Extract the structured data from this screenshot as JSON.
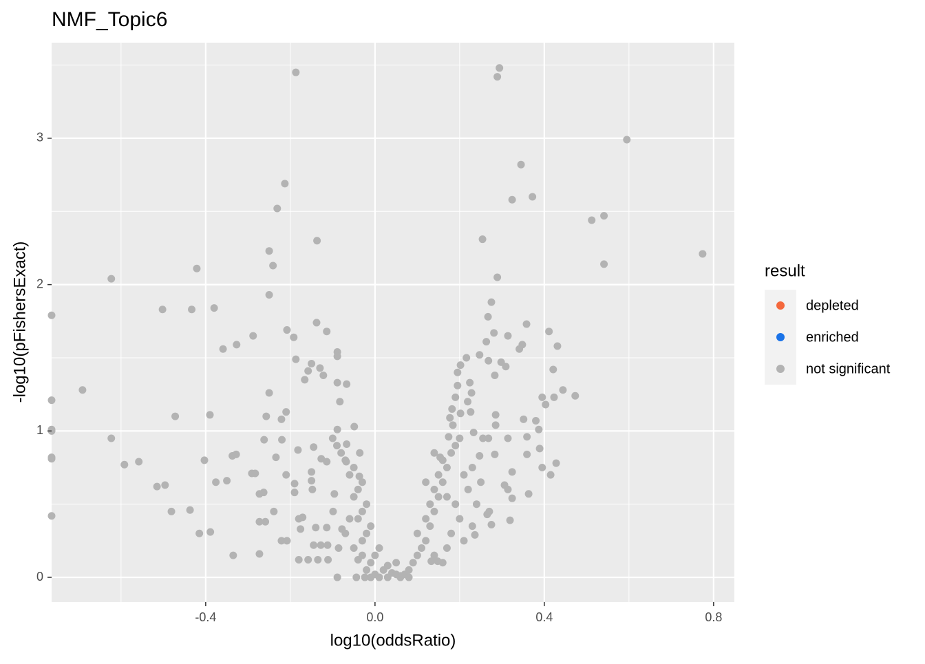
{
  "chart_data": {
    "type": "scatter",
    "title": "NMF_Topic6",
    "x_label": "log10(oddsRatio)",
    "y_label": "-log10(pFishersExact)",
    "legend_title": "result",
    "legend_position": "right",
    "xlim": [
      -0.764,
      0.849
    ],
    "ylim": [
      -0.169,
      3.653
    ],
    "xticks": [
      -0.4,
      {
        "value": 0,
        "label": "0.0"
      },
      0.4,
      0.8
    ],
    "yticks": [
      0,
      1,
      2,
      3
    ],
    "minor_xticks": [
      -0.6,
      -0.2,
      0.2,
      0.6
    ],
    "minor_yticks": [
      0.5,
      1.5,
      2.5,
      3.5
    ],
    "grid": true,
    "series": [
      {
        "name": "depleted",
        "color": "#f4683c",
        "x": [],
        "values": []
      },
      {
        "name": "enriched",
        "color": "#1a73e8",
        "x": [],
        "values": []
      },
      {
        "name": "not significant",
        "color": "#b3b3b3",
        "x": [
          -0.187,
          0.294,
          0.289,
          0.595,
          0.345,
          -0.213,
          0.372,
          0.324,
          -0.231,
          0.541,
          0.512,
          -0.137,
          0.254,
          -0.25,
          0.774,
          0.541,
          -0.241,
          -0.421,
          -0.623,
          0.289,
          -0.25,
          0.275,
          -0.502,
          -0.433,
          -0.38,
          -0.764,
          0.267,
          -0.138,
          0.358,
          -0.208,
          -0.114,
          0.411,
          0.281,
          -0.192,
          -0.288,
          0.314,
          0.263,
          -0.327,
          0.348,
          0.431,
          -0.359,
          0.341,
          -0.089,
          -0.089,
          0.247,
          0.216,
          -0.187,
          0.268,
          -0.15,
          0.298,
          0.202,
          0.309,
          -0.13,
          -0.158,
          0.421,
          -0.122,
          0.195,
          -0.166,
          0.283,
          -0.089,
          -0.067,
          0.224,
          0.195,
          -0.691,
          0.444,
          -0.25,
          0.228,
          0.473,
          0.395,
          0.423,
          0.19,
          -0.764,
          0.219,
          -0.083,
          0.403,
          0.182,
          0.226,
          -0.21,
          0.202,
          0.285,
          -0.472,
          -0.39,
          -0.257,
          0.177,
          -0.221,
          0.351,
          0.38,
          0.184,
          -0.764,
          -0.764,
          -0.089,
          -0.049,
          -0.623,
          -0.262,
          -0.22,
          0.314,
          0.359,
          0.387,
          0.233,
          0.174,
          0.255,
          0.285,
          0.268,
          -0.145,
          -0.067,
          0.389,
          -0.328,
          -0.337,
          -0.182,
          0.359,
          -0.234,
          -0.764,
          -0.764,
          -0.403,
          -0.127,
          -0.036,
          0.283,
          0.247,
          0.154,
          -0.592,
          -0.558,
          0.428,
          0.395,
          -0.114,
          -0.068,
          -0.15,
          0.324,
          -0.291,
          -0.283,
          -0.21,
          0.415,
          -0.376,
          -0.35,
          -0.15,
          -0.037,
          -0.19,
          -0.515,
          -0.496,
          0.306,
          0.314,
          -0.148,
          -0.273,
          -0.263,
          -0.19,
          -0.096,
          0.363,
          0.324,
          -0.481,
          -0.437,
          -0.239,
          -0.099,
          0.265,
          -0.764,
          0.319,
          -0.273,
          -0.259,
          -0.18,
          -0.171,
          0.275,
          -0.176,
          -0.14,
          -0.114,
          -0.415,
          -0.389,
          -0.078,
          0.236,
          -0.221,
          -0.208,
          -0.145,
          -0.128,
          -0.112,
          -0.086,
          -0.335,
          -0.273,
          -0.18,
          -0.158,
          -0.135,
          -0.111,
          0.133,
          0.148,
          -0.089,
          -0.044,
          -0.024,
          -0.02,
          -0.01,
          0,
          0.01,
          -0.03,
          -0.02,
          -0.01,
          -0.04,
          -0.03,
          -0.02,
          -0.05,
          -0.04,
          -0.03,
          -0.06,
          -0.05,
          -0.07,
          -0.08,
          -0.09,
          -0.1,
          0,
          0.02,
          0.03,
          0.04,
          0.05,
          0.06,
          0.07,
          0.08,
          0.09,
          0.1,
          0.11,
          0.12,
          0.1,
          0.13,
          0.12,
          0.14,
          0.13,
          0.15,
          0.14,
          0.16,
          0.15,
          0.17,
          0.16,
          0.18,
          0.19,
          0.2,
          0.21,
          0.22,
          0.19,
          0.2,
          0.18,
          0.17,
          0.16,
          0.14,
          0.23,
          0.25,
          0.24,
          0.27,
          0.23,
          0.21,
          0.03,
          0.06,
          0.01,
          -0.01,
          0.05,
          -0.03,
          0.08,
          0.12,
          0.14,
          0.17,
          -0.06,
          -0.07,
          -0.05,
          -0.04
        ],
        "values": [
          3.45,
          3.48,
          3.42,
          2.99,
          2.82,
          2.69,
          2.6,
          2.58,
          2.52,
          2.47,
          2.44,
          2.3,
          2.31,
          2.23,
          2.21,
          2.14,
          2.13,
          2.11,
          2.04,
          2.05,
          1.93,
          1.88,
          1.83,
          1.83,
          1.84,
          1.79,
          1.78,
          1.74,
          1.73,
          1.69,
          1.68,
          1.68,
          1.67,
          1.64,
          1.65,
          1.65,
          1.61,
          1.59,
          1.59,
          1.58,
          1.56,
          1.56,
          1.54,
          1.51,
          1.52,
          1.5,
          1.49,
          1.48,
          1.46,
          1.47,
          1.45,
          1.44,
          1.43,
          1.41,
          1.42,
          1.38,
          1.4,
          1.35,
          1.38,
          1.33,
          1.32,
          1.33,
          1.31,
          1.28,
          1.28,
          1.26,
          1.26,
          1.24,
          1.23,
          1.23,
          1.23,
          1.21,
          1.2,
          1.2,
          1.18,
          1.15,
          1.13,
          1.13,
          1.12,
          1.11,
          1.1,
          1.11,
          1.1,
          1.09,
          1.08,
          1.08,
          1.07,
          1.04,
          1.01,
          1.0,
          1.01,
          1.03,
          0.95,
          0.94,
          0.94,
          0.95,
          0.96,
          1.01,
          0.99,
          0.96,
          0.95,
          1.04,
          0.95,
          0.89,
          0.91,
          0.88,
          0.84,
          0.83,
          0.87,
          0.84,
          0.82,
          0.82,
          0.81,
          0.8,
          0.81,
          0.85,
          0.84,
          0.83,
          0.82,
          0.77,
          0.79,
          0.78,
          0.75,
          0.79,
          0.79,
          0.72,
          0.72,
          0.71,
          0.71,
          0.7,
          0.7,
          0.65,
          0.66,
          0.66,
          0.69,
          0.64,
          0.62,
          0.63,
          0.63,
          0.6,
          0.6,
          0.57,
          0.58,
          0.58,
          0.57,
          0.57,
          0.54,
          0.45,
          0.46,
          0.45,
          0.45,
          0.43,
          0.42,
          0.39,
          0.38,
          0.38,
          0.4,
          0.41,
          0.36,
          0.33,
          0.34,
          0.34,
          0.3,
          0.31,
          0.33,
          0.29,
          0.25,
          0.25,
          0.22,
          0.22,
          0.22,
          0.2,
          0.15,
          0.16,
          0.12,
          0.12,
          0.12,
          0.12,
          0.11,
          0.11,
          0,
          0,
          0,
          0.05,
          0.1,
          0.15,
          0.2,
          0.25,
          0.3,
          0.35,
          0.4,
          0.45,
          0.5,
          0.55,
          0.6,
          0.65,
          0.7,
          0.75,
          0.8,
          0.85,
          0.9,
          0.95,
          0.02,
          0.05,
          0.08,
          0.03,
          0.02,
          0.01,
          0.02,
          0.05,
          0.1,
          0.15,
          0.2,
          0.25,
          0.3,
          0.35,
          0.4,
          0.45,
          0.5,
          0.55,
          0.6,
          0.65,
          0.7,
          0.75,
          0.8,
          0.85,
          0.9,
          0.95,
          0.7,
          0.6,
          0.5,
          0.4,
          0.3,
          0.2,
          0.1,
          0.15,
          0.75,
          0.65,
          0.5,
          0.45,
          0.35,
          0.25,
          0,
          0,
          0,
          0,
          0.1,
          0.15,
          0,
          0.65,
          0.85,
          0.55,
          0.4,
          0.3,
          0.2,
          0.12
        ]
      }
    ]
  }
}
